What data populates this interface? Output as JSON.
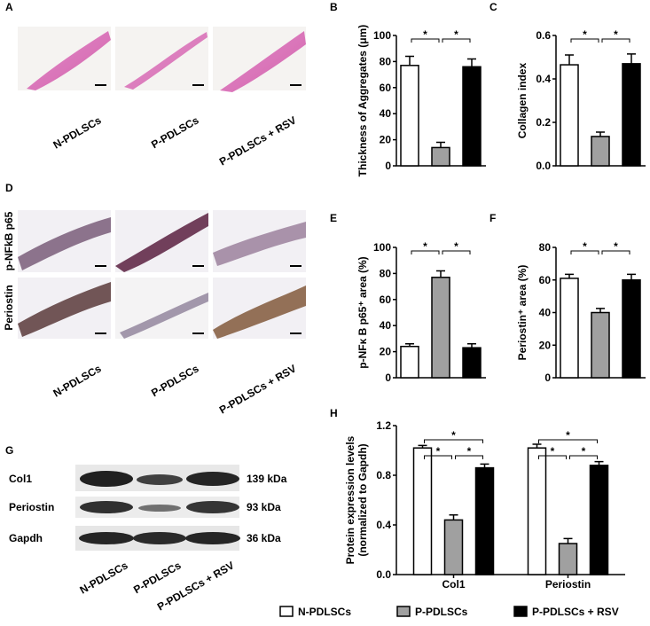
{
  "panel_labels": [
    "A",
    "B",
    "C",
    "D",
    "E",
    "F",
    "G",
    "H"
  ],
  "histology": {
    "groups": [
      "N-PDLSCs",
      "P-PDLSCs",
      "P-PDLSCs + RSV"
    ],
    "stains": [
      "p-NFkB p65",
      "Periostin"
    ]
  },
  "blot": {
    "proteins": [
      "Col1",
      "Periostin",
      "Gapdh"
    ],
    "sizes": [
      "139 kDa",
      "93 kDa",
      "36 kDa"
    ]
  },
  "chart_data": [
    {
      "type": "bar",
      "ylabel": [
        "Thickness of Aggregates (μm)"
      ],
      "categories": [
        null,
        null,
        null
      ],
      "values": [
        77,
        14,
        76
      ],
      "errors": [
        7,
        4,
        6
      ],
      "colors": [
        "#ffffff",
        "#a0a0a0",
        "#000000"
      ],
      "ylim": [
        0,
        100
      ],
      "yticks": [
        0,
        20,
        40,
        60,
        80,
        100
      ],
      "annotations": [
        "*",
        "*"
      ]
    },
    {
      "type": "bar",
      "ylabel": [
        "Collagen index"
      ],
      "categories": [
        null,
        null,
        null
      ],
      "values": [
        0.465,
        0.135,
        0.47
      ],
      "errors": [
        0.045,
        0.02,
        0.045
      ],
      "colors": [
        "#ffffff",
        "#a0a0a0",
        "#000000"
      ],
      "ylim": [
        0,
        0.6
      ],
      "yticks": [
        {
          "value": 0,
          "label": "0.0"
        },
        0.2,
        0.4,
        0.6
      ],
      "annotations": [
        "*",
        "*"
      ]
    },
    {
      "type": "bar",
      "ylabel": [
        "p-NFκ B p65⁺ area (%)"
      ],
      "categories": [
        null,
        null,
        null
      ],
      "values": [
        24,
        77,
        23
      ],
      "errors": [
        2,
        5,
        3
      ],
      "colors": [
        "#ffffff",
        "#a0a0a0",
        "#000000"
      ],
      "ylim": [
        0,
        100
      ],
      "yticks": [
        0,
        20,
        40,
        60,
        80,
        100
      ],
      "annotations": [
        "*",
        "*"
      ]
    },
    {
      "type": "bar",
      "ylabel": [
        "Periostin⁺ area (%)"
      ],
      "categories": [
        null,
        null,
        null
      ],
      "values": [
        61,
        40,
        60
      ],
      "errors": [
        2.5,
        2.5,
        3.5
      ],
      "colors": [
        "#ffffff",
        "#a0a0a0",
        "#000000"
      ],
      "ylim": [
        0,
        80
      ],
      "yticks": [
        0,
        20,
        40,
        60,
        80
      ],
      "annotations": [
        "*",
        "*"
      ]
    },
    {
      "type": "grouped-bar",
      "ylabel": [
        "Protein expression levels",
        "(normalized to Gapdh)"
      ],
      "categories": [
        "Col1",
        "Periostin"
      ],
      "series": [
        {
          "name": "N-PDLSCs",
          "color": "#ffffff",
          "values": [
            1.02,
            1.02
          ],
          "errors": [
            0.02,
            0.03
          ]
        },
        {
          "name": "P-PDLSCs",
          "color": "#a0a0a0",
          "values": [
            0.44,
            0.25
          ],
          "errors": [
            0.04,
            0.04
          ]
        },
        {
          "name": "P-PDLSCs + RSV",
          "color": "#000000",
          "values": [
            0.86,
            0.88
          ],
          "errors": [
            0.03,
            0.03
          ]
        }
      ],
      "ylim": [
        0,
        1.2
      ],
      "yticks": [
        {
          "value": 0,
          "label": "0.0"
        },
        0.4,
        0.8,
        1.2
      ],
      "annotations": [
        "*",
        "*",
        "*",
        "*",
        "*",
        "*"
      ]
    }
  ]
}
